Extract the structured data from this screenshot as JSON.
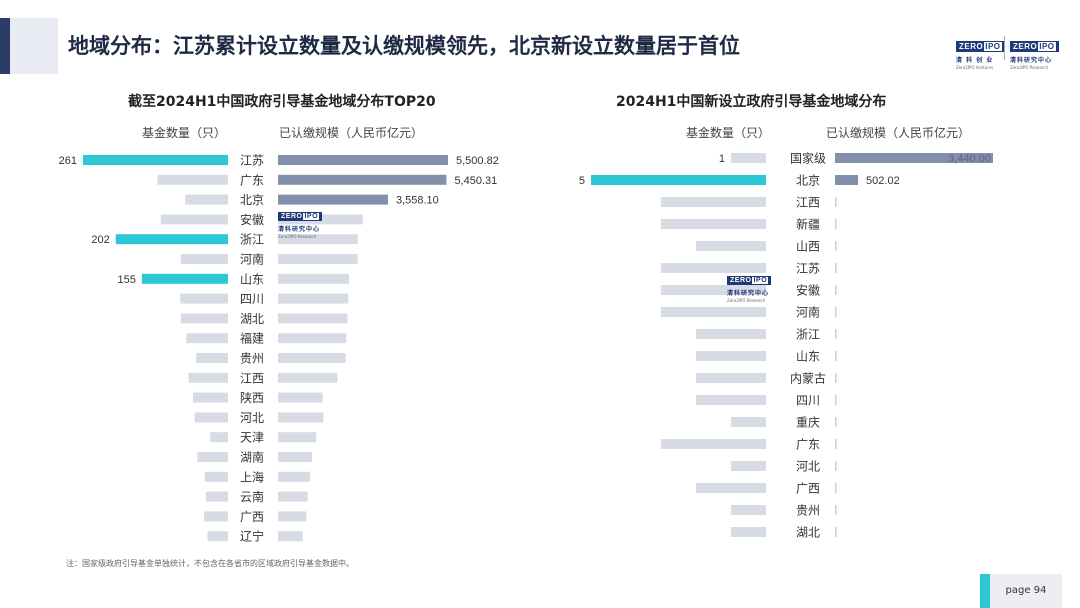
{
  "header": {
    "title": "地域分布：江苏累计设立数量及认缴规模领先，北京新设立数量居于首位"
  },
  "logos": [
    {
      "top": "ZERO",
      "ipo": "IPO",
      "cn": "清 科 创 业",
      "en": "Zero2IPO Ventures"
    },
    {
      "top": "ZERO",
      "ipo": "IPO",
      "cn": "清科研究中心",
      "en": "Zero2IPO Research"
    }
  ],
  "watermark": {
    "top": "ZERO",
    "ipo": "IPO",
    "cn": "清科研究中心",
    "en": "Zero2IPO Research"
  },
  "colors": {
    "accent_teal": "#2ec7d6",
    "bar_gray": "#d7dbe3",
    "bar_navy": "#8390ab",
    "header_navy": "#2b3d66"
  },
  "chart_data": [
    {
      "type": "bar",
      "title": "截至2024H1中国政府引导基金地域分布TOP20",
      "left_label": "基金数量（只）",
      "right_label": "已认缴规模（人民币亿元）",
      "categories": [
        "江苏",
        "广东",
        "北京",
        "安徽",
        "浙江",
        "河南",
        "山东",
        "四川",
        "湖北",
        "福建",
        "贵州",
        "江西",
        "陕西",
        "河北",
        "天津",
        "湖南",
        "上海",
        "云南",
        "广西",
        "辽宁"
      ],
      "series": [
        {
          "name": "基金数量（只）",
          "values": [
            261,
            127,
            77,
            121,
            202,
            85,
            155,
            86,
            85,
            75,
            57,
            71,
            63,
            60,
            32,
            55,
            42,
            40,
            43,
            37
          ],
          "labels": [
            "261",
            "",
            "",
            "",
            "202",
            "",
            "155",
            "",
            "",
            "",
            "",
            "",
            "",
            "",
            "",
            "",
            "",
            "",
            "",
            ""
          ]
        },
        {
          "name": "已认缴规模（人民币亿元）",
          "values": [
            5500.82,
            5450.31,
            3558.1,
            2740,
            2580,
            2580,
            2300,
            2270,
            2250,
            2210,
            2190,
            1920,
            1440,
            1470,
            1240,
            1100,
            1040,
            960,
            920,
            800
          ],
          "labels": [
            "5,500.82",
            "5,450.31",
            "3,558.10",
            "",
            "",
            "",
            "",
            "",
            "",
            "",
            "",
            "",
            "",
            "",
            "",
            "",
            "",
            "",
            "",
            ""
          ]
        }
      ],
      "count_max": 261,
      "amount_max": 5500.82
    },
    {
      "type": "bar",
      "title": "2024H1中国新设立政府引导基金地域分布",
      "left_label": "基金数量（只）",
      "right_label": "已认缴规模（人民币亿元）",
      "categories": [
        "国家级",
        "北京",
        "江西",
        "新疆",
        "山西",
        "江苏",
        "安徽",
        "河南",
        "浙江",
        "山东",
        "内蒙古",
        "四川",
        "重庆",
        "广东",
        "河北",
        "广西",
        "贵州",
        "湖北"
      ],
      "series": [
        {
          "name": "基金数量（只）",
          "values": [
            1,
            5,
            3,
            3,
            2,
            3,
            3,
            3,
            2,
            2,
            2,
            2,
            1,
            3,
            1,
            2,
            1,
            1
          ],
          "labels": [
            "1",
            "5",
            "",
            "",
            "",
            "",
            "",
            "",
            "",
            "",
            "",
            "",
            "",
            "",
            "",
            "",
            "",
            ""
          ]
        },
        {
          "name": "已认缴规模（人民币亿元）",
          "values": [
            3440.0,
            502.02,
            1,
            1,
            1,
            1,
            1,
            1,
            1,
            1,
            1,
            1,
            1,
            1,
            1,
            1,
            1,
            1
          ],
          "labels": [
            "3,440.00",
            "502.02",
            "",
            "",
            "",
            "",
            "",
            "",
            "",
            "",
            "",
            "",
            "",
            "",
            "",
            "",
            "",
            ""
          ]
        }
      ],
      "count_max": 5,
      "amount_max": 3440.0
    }
  ],
  "note": "注：国家级政府引导基金单独统计，不包含在各省市的区域政府引导基金数据中。",
  "page": "page   94"
}
